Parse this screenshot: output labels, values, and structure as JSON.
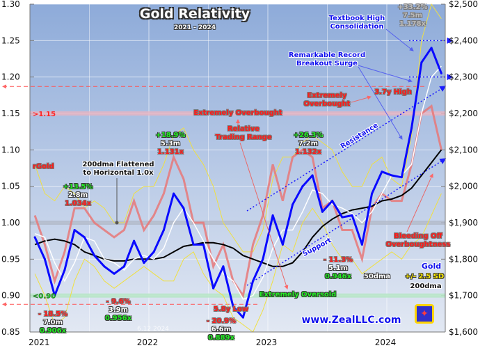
{
  "chart_data": {
    "type": "line",
    "title": "Gold Relativity",
    "subtitle": "2021 - 2024",
    "date_stamp": "6.12.2024",
    "x_ticks": [
      "2021",
      "2022",
      "2023",
      "2024"
    ],
    "x_range": [
      "2021-01",
      "2024-06"
    ],
    "left_axis": {
      "label": "rGold",
      "ylim": [
        0.85,
        1.3
      ],
      "ticks": [
        "1.30",
        "1.25",
        "1.20",
        "1.15",
        "1.10",
        "1.05",
        "1.00",
        "0.95",
        "0.90",
        "0.85"
      ]
    },
    "right_axis": {
      "ylim": [
        1600,
        2500
      ],
      "ticks": [
        "$2,500",
        "$2,400",
        "$2,300",
        "$2,200",
        "$2,100",
        "$2,000",
        "$1,900",
        "$1,800",
        "$1,700",
        "$1,600"
      ]
    },
    "grid": true,
    "months": [
      "2021-01",
      "2021-02",
      "2021-03",
      "2021-04",
      "2021-05",
      "2021-06",
      "2021-07",
      "2021-08",
      "2021-09",
      "2021-10",
      "2021-11",
      "2021-12",
      "2022-01",
      "2022-02",
      "2022-03",
      "2022-04",
      "2022-05",
      "2022-06",
      "2022-07",
      "2022-08",
      "2022-09",
      "2022-10",
      "2022-11",
      "2022-12",
      "2023-01",
      "2023-02",
      "2023-03",
      "2023-04",
      "2023-05",
      "2023-06",
      "2023-07",
      "2023-08",
      "2023-09",
      "2023-10",
      "2023-11",
      "2023-12",
      "2024-01",
      "2024-02",
      "2024-03",
      "2024-04",
      "2024-05",
      "2024-06"
    ],
    "series": [
      {
        "name": "Gold",
        "axis": "right",
        "color": "#0a0aff",
        "values": [
          1860,
          1800,
          1700,
          1770,
          1880,
          1860,
          1810,
          1780,
          1760,
          1780,
          1850,
          1790,
          1820,
          1880,
          1980,
          1940,
          1840,
          1840,
          1720,
          1780,
          1670,
          1640,
          1740,
          1800,
          1920,
          1840,
          1950,
          2000,
          2030,
          1930,
          1960,
          1915,
          1920,
          1840,
          1980,
          2040,
          2030,
          2025,
          2160,
          2340,
          2380,
          2310
        ]
      },
      {
        "name": "50dma",
        "axis": "right",
        "color": "#ffffff",
        "values": [
          1870,
          1860,
          1790,
          1740,
          1790,
          1860,
          1850,
          1800,
          1790,
          1770,
          1800,
          1810,
          1800,
          1830,
          1900,
          1940,
          1900,
          1850,
          1800,
          1760,
          1740,
          1690,
          1700,
          1750,
          1830,
          1880,
          1880,
          1930,
          1990,
          1980,
          1950,
          1940,
          1925,
          1900,
          1930,
          1980,
          2030,
          2030,
          2060,
          2200,
          2300,
          2330
        ]
      },
      {
        "name": "200dma",
        "axis": "right",
        "color": "#000000",
        "values": [
          1840,
          1850,
          1855,
          1850,
          1840,
          1820,
          1810,
          1800,
          1795,
          1795,
          1800,
          1800,
          1800,
          1805,
          1820,
          1835,
          1840,
          1845,
          1845,
          1840,
          1830,
          1810,
          1800,
          1790,
          1780,
          1780,
          1790,
          1820,
          1860,
          1890,
          1910,
          1925,
          1935,
          1940,
          1945,
          1960,
          1965,
          1975,
          1995,
          2030,
          2065,
          2100
        ]
      },
      {
        "name": "rGold",
        "axis": "left",
        "color": "#e87878",
        "values": [
          1.01,
          0.97,
          0.92,
          0.96,
          1.02,
          1.02,
          1.0,
          0.99,
          0.98,
          0.99,
          1.03,
          0.99,
          1.01,
          1.04,
          1.09,
          1.06,
          1.0,
          1.0,
          0.94,
          0.97,
          0.92,
          0.9,
          0.97,
          1.01,
          1.08,
          1.03,
          1.09,
          1.1,
          1.09,
          1.02,
          1.03,
          0.99,
          0.99,
          0.95,
          1.02,
          1.04,
          1.03,
          1.03,
          1.08,
          1.15,
          1.16,
          1.1
        ]
      },
      {
        "name": "+/- 2.5 SD",
        "axis": "left",
        "color": "#f0e040",
        "upper": [
          1.08,
          1.04,
          1.03,
          1.05,
          1.04,
          1.02,
          1.03,
          1.02,
          1.0,
          1.0,
          1.04,
          1.05,
          1.05,
          1.08,
          1.12,
          1.13,
          1.1,
          1.08,
          1.05,
          1.0,
          0.98,
          0.96,
          0.96,
          0.99,
          1.06,
          1.09,
          1.09,
          1.11,
          1.12,
          1.11,
          1.1,
          1.07,
          1.05,
          1.05,
          1.08,
          1.09,
          1.06,
          1.05,
          1.12,
          1.25,
          1.3,
          1.28
        ],
        "lower": [
          0.93,
          0.9,
          0.86,
          0.87,
          0.92,
          0.95,
          0.94,
          0.92,
          0.91,
          0.92,
          0.93,
          0.94,
          0.93,
          0.92,
          0.92,
          0.95,
          0.96,
          0.93,
          0.91,
          0.9,
          0.87,
          0.86,
          0.85,
          0.88,
          0.92,
          0.97,
          0.96,
          1.0,
          1.02,
          1.0,
          0.97,
          0.95,
          0.95,
          0.93,
          0.94,
          0.95,
          0.96,
          0.95,
          0.97,
          0.98,
          1.01,
          1.04
        ]
      }
    ],
    "reference_levels": {
      "overbought": ">1.15",
      "oversold": "<0.90",
      "baseline": 1.0,
      "high_dashed": 1.187,
      "low_dashed": 0.888,
      "gold_dotted": [
        2400,
        2300
      ]
    },
    "colors": {
      "bg_top": "#8eabd9",
      "bg_bottom": "#e2e8f3",
      "overbought_band": "#e8b4c0",
      "oversold_band": "#b8e6c8",
      "baseline_band": "#b0b8c8",
      "dashed": "#ff5555",
      "trend": "#1a1aff"
    }
  },
  "annotations": {
    "rgold": "rGold",
    "flattened": [
      "200dma Flattened",
      "to Horizontal 1.0x"
    ],
    "p1": [
      "+13.5%",
      "2.8m",
      "1.034x"
    ],
    "p2": [
      "+18.9%",
      "5.3m",
      "1.131x"
    ],
    "p3": [
      "+26.3%",
      "7.2m",
      "1.132x"
    ],
    "p4": [
      "+33.2%",
      "7.5m",
      "1.178x"
    ],
    "n1": [
      "- 18.5%",
      "7.0m",
      "0.906x"
    ],
    "n2": [
      "- 9.6%",
      "3.9m",
      "0.956x"
    ],
    "n3": [
      "- 20.9%",
      "6.6m",
      "0.889x"
    ],
    "n4": [
      "- 11.3%",
      "5.1m",
      "0.946x"
    ],
    "low": "5.8y Low",
    "high": "3.7y High",
    "ext_overbought": "Extremely Overbought",
    "ext_overbought2": [
      "Extremely",
      "Overbought"
    ],
    "ext_oversold": "Extremely Oversold",
    "range": [
      "Relative",
      "Trading Range"
    ],
    "resistance": "Resistance",
    "support": "Support",
    "textbook": [
      "Textbook High",
      "Consolidation"
    ],
    "breakout": [
      "Remarkable Record",
      "Breakout Surge"
    ],
    "bleeding": [
      "Bleeding Off",
      "Overboughtness"
    ],
    "legend": {
      "gold": "Gold",
      "dma50": "50dma",
      "sd": "+/- 2.5 SD",
      "dma200": "200dma"
    },
    "site": "www.ZealLLC.com"
  }
}
